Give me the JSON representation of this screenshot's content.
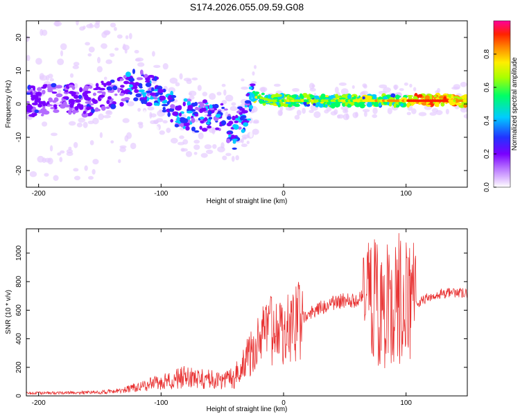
{
  "title": "S174.2026.055.09.59.G08",
  "chart_data": [
    {
      "type": "heatmap",
      "xlabel": "Height of straight line (km)",
      "ylabel": "Frequency (Hz)",
      "xlim": [
        -210,
        150
      ],
      "ylim": [
        -25,
        25
      ],
      "xticks": [
        -200,
        -100,
        0,
        100
      ],
      "yticks": [
        -20,
        -10,
        0,
        10,
        20
      ],
      "colorbar": {
        "label": "Normalized spectral amplitude",
        "range": [
          0.0,
          1.0
        ],
        "ticks": [
          0.0,
          0.2,
          0.4,
          0.6,
          0.8
        ],
        "colors": [
          "#ffffff",
          "#e6ccff",
          "#b36bff",
          "#7a00ff",
          "#2233ff",
          "#00ccff",
          "#00ff66",
          "#aaff00",
          "#ffee00",
          "#ff8800",
          "#ff2200",
          "#ff0099"
        ]
      },
      "ridge": {
        "x": [
          -200,
          -180,
          -160,
          -140,
          -130,
          -120,
          -110,
          -100,
          -90,
          -80,
          -70,
          -60,
          -50,
          -45,
          -40,
          -35,
          -30,
          -25,
          -20,
          -10,
          0,
          20,
          40,
          60,
          80,
          100,
          120,
          150
        ],
        "frequency": [
          1,
          2,
          1,
          3,
          4,
          6,
          4,
          3,
          -2,
          -3,
          -4,
          -3,
          -4,
          -7,
          -9,
          -5,
          -2,
          2,
          2,
          1,
          1,
          1,
          1,
          1,
          1,
          1,
          1,
          1
        ]
      }
    },
    {
      "type": "line",
      "xlabel": "Height of straight line (km)",
      "ylabel": "SNR (10 * v/v)",
      "xlim": [
        -210,
        150
      ],
      "ylim": [
        0,
        1170
      ],
      "xticks": [
        -200,
        -100,
        0,
        100
      ],
      "yticks": [
        0,
        200,
        400,
        600,
        800,
        1000
      ],
      "color": "#e83030",
      "envelope": {
        "x": [
          -210,
          -190,
          -150,
          -130,
          -110,
          -90,
          -80,
          -70,
          -50,
          -40,
          -30,
          -20,
          -15,
          -10,
          0,
          10,
          20,
          30,
          40,
          50,
          60,
          65,
          70,
          80,
          90,
          100,
          105,
          110,
          120,
          130,
          150
        ],
        "snr": [
          20,
          20,
          25,
          40,
          80,
          110,
          140,
          120,
          110,
          130,
          270,
          380,
          430,
          470,
          450,
          520,
          570,
          620,
          650,
          670,
          670,
          690,
          690,
          650,
          640,
          660,
          670,
          650,
          700,
          720,
          720
        ]
      }
    }
  ]
}
